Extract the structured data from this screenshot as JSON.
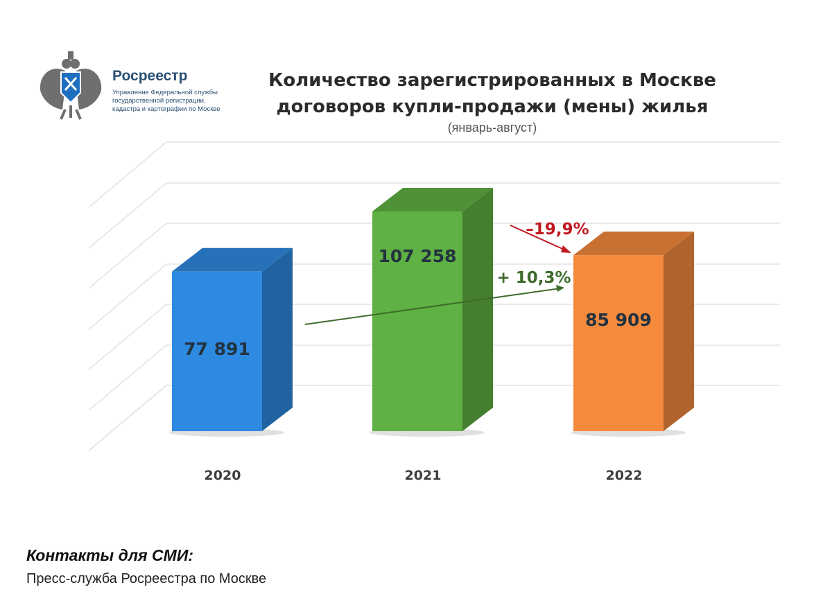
{
  "logo": {
    "org_name": "Росреестр",
    "org_sub_lines": [
      "Управление Федеральной службы",
      "государственной регистрации,",
      "кадастра и картографии по Москве"
    ]
  },
  "chart_data": {
    "type": "bar",
    "title_lines": [
      "Количество зарегистрированных в Москве",
      "договоров купли-продажи (мены) жилья"
    ],
    "subtitle": "(январь-август)",
    "categories": [
      "2020",
      "2021",
      "2022"
    ],
    "values": [
      77891,
      107258,
      85909
    ],
    "value_labels": [
      "77 891",
      "107 258",
      "85 909"
    ],
    "colors": [
      "#2e8ae0",
      "#5fb143",
      "#f58a3d"
    ],
    "annotations": [
      {
        "text": "+ 10,3%",
        "from": "2020",
        "to": "2022",
        "color": "#3e6b2b"
      },
      {
        "text": "–19,9%",
        "from": "2021",
        "to": "2022",
        "color": "#c0181f"
      }
    ],
    "grid": true,
    "style": "3d"
  },
  "footer": {
    "contacts_heading": "Контакты для СМИ:",
    "press_service": "Пресс-служба Росреестра по Москве"
  }
}
